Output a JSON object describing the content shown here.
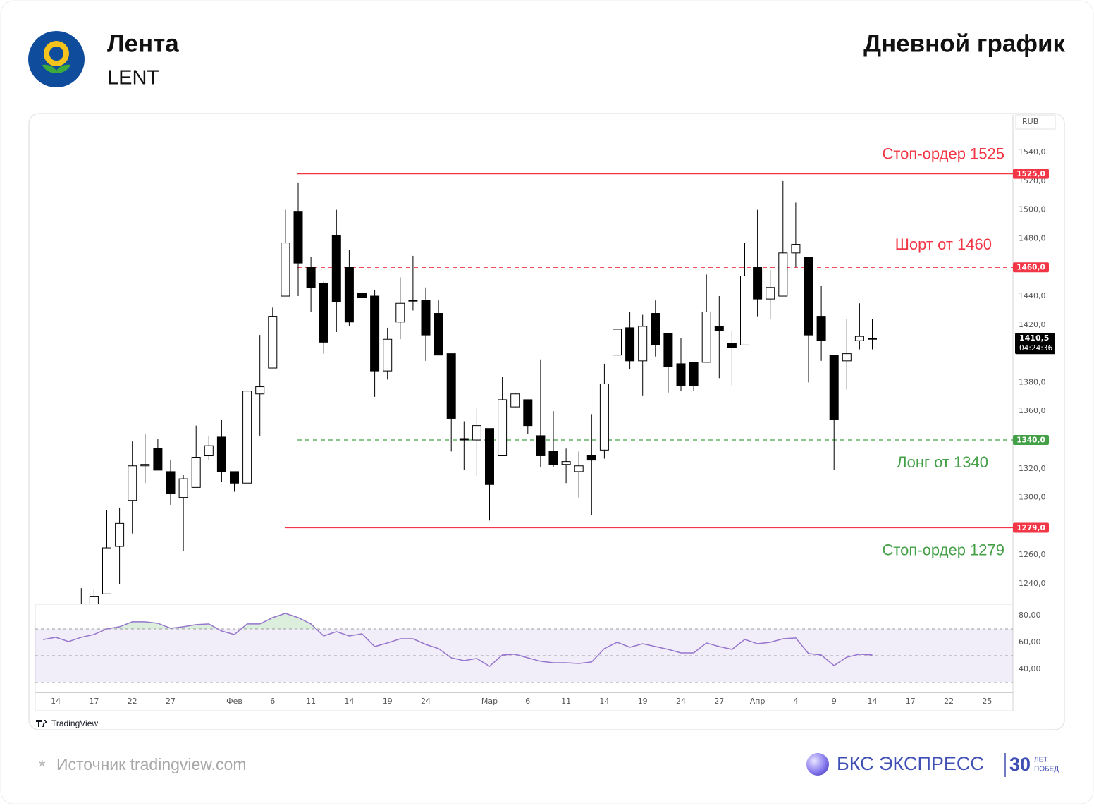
{
  "header": {
    "title": "Лента",
    "ticker": "LENT",
    "chart_label": "Дневной график"
  },
  "chart_data": [
    {
      "type": "candlestick",
      "currency": "RUB",
      "categories": [
        null,
        "14",
        null,
        null,
        "17",
        null,
        null,
        "22",
        null,
        null,
        "27",
        null,
        null,
        null,
        null,
        "Фев",
        null,
        null,
        "6",
        null,
        null,
        "11",
        null,
        null,
        "14",
        null,
        null,
        "19",
        null,
        null,
        "24",
        null,
        null,
        null,
        null,
        "Мар",
        null,
        null,
        "6",
        null,
        null,
        "11",
        null,
        null,
        "14",
        null,
        null,
        "19",
        null,
        null,
        "24",
        null,
        null,
        "27",
        null,
        null,
        "Апр",
        null,
        null,
        "4",
        null,
        null,
        "9",
        null,
        null,
        "14",
        null,
        null,
        "17",
        null,
        null,
        "22",
        null,
        null,
        "25"
      ],
      "open": [
        null,
        null,
        null,
        1220,
        1222,
        1233,
        1266,
        1298,
        1322,
        1334,
        1318,
        1300,
        1307,
        1329,
        1342,
        1318,
        1310,
        1372,
        1390,
        1440,
        1499,
        1460,
        1449,
        1482,
        1460,
        1442,
        1440,
        1388,
        1422,
        1437,
        1437,
        1428,
        1400,
        1341,
        1340,
        1348,
        1329,
        1363,
        1368,
        1343,
        1332,
        1323,
        1318,
        1329,
        1333,
        1399,
        1418,
        1395,
        1428,
        1414,
        1393,
        1394,
        1394,
        1419,
        1407,
        1406,
        1460,
        1438,
        1440,
        1470,
        1467,
        1426,
        1399,
        1395,
        1409,
        1410.5,
        null,
        null,
        null,
        null,
        null,
        null,
        null,
        null,
        null
      ],
      "high": [
        null,
        null,
        null,
        1237,
        1236,
        1291,
        1293,
        1339,
        1344,
        1341,
        1326,
        1316,
        1350,
        1343,
        1354,
        1318,
        1374,
        1413,
        1432,
        1500,
        1519,
        1467,
        1450,
        1500,
        1472,
        1451,
        1444,
        1418,
        1453,
        1468,
        1446,
        1437,
        1400,
        1353,
        1362,
        1348,
        1384,
        1373,
        1368,
        1396,
        1360,
        1334,
        1332,
        1358,
        1393,
        1427,
        1429,
        1427,
        1437,
        1414,
        1411,
        1394,
        1455,
        1440,
        1416,
        1477,
        1500,
        1458,
        1520,
        1505,
        1467,
        1447,
        1399,
        1424,
        1435,
        1424,
        null,
        null,
        null,
        null,
        null,
        null,
        null,
        null,
        null
      ],
      "low": [
        null,
        null,
        null,
        1208,
        1215,
        1233,
        1240,
        1275,
        1310,
        1319,
        1295,
        1263,
        1307,
        1326,
        1311,
        1304,
        1310,
        1343,
        1390,
        1440,
        1440,
        1429,
        1400,
        1415,
        1419,
        1432,
        1370,
        1382,
        1410,
        1430,
        1395,
        1399,
        1332,
        1319,
        1315,
        1284,
        1329,
        1362,
        1344,
        1321,
        1321,
        1310,
        1300,
        1288,
        1327,
        1388,
        1389,
        1371,
        1398,
        1373,
        1374,
        1374,
        1394,
        1383,
        1378,
        1406,
        1426,
        1424,
        1440,
        1460,
        1380,
        1395,
        1319,
        1375,
        1403,
        1403,
        null,
        null,
        null,
        null,
        null,
        null,
        null,
        null,
        null
      ],
      "close": [
        null,
        null,
        null,
        1215,
        1231,
        1265,
        1282,
        1322,
        1323,
        1319,
        1303,
        1313,
        1328,
        1336,
        1318,
        1310,
        1374,
        1377,
        1426,
        1477,
        1463,
        1446,
        1408,
        1436,
        1422,
        1439,
        1388,
        1410,
        1435,
        1437,
        1413,
        1399,
        1355,
        1340,
        1350,
        1309,
        1368,
        1372,
        1350,
        1329,
        1323,
        1325,
        1322,
        1326,
        1379,
        1417,
        1395,
        1419,
        1406,
        1391,
        1378,
        1378,
        1429,
        1416,
        1404,
        1454,
        1438,
        1446,
        1470,
        1476,
        1413,
        1409,
        1354,
        1400,
        1412,
        1410.5,
        null,
        null,
        null,
        null,
        null,
        null,
        null,
        null,
        null
      ],
      "up_color": "#ffffff",
      "down_color": "#000000",
      "ylim": [
        1225.8,
        1566
      ],
      "yticks": [
        {
          "value": 1540,
          "label": "1540,0"
        },
        {
          "value": 1520,
          "label": "1520,0"
        },
        {
          "value": 1500,
          "label": "1500,0"
        },
        {
          "value": 1480,
          "label": "1480,0"
        },
        {
          "value": 1440,
          "label": "1440,0"
        },
        {
          "value": 1420,
          "label": "1420,0"
        },
        {
          "value": 1380,
          "label": "1380,0"
        },
        {
          "value": 1360,
          "label": "1360,0"
        },
        {
          "value": 1320,
          "label": "1320,0"
        },
        {
          "value": 1300,
          "label": "1300,0"
        },
        {
          "value": 1260,
          "label": "1260,0"
        },
        {
          "value": 1240,
          "label": "1240,0"
        }
      ],
      "levels": [
        {
          "value": 1525,
          "label": "1525,0",
          "text": "Стоп-ордер 1525",
          "color": "#f23645",
          "text_color": "#f23645",
          "style": "solid"
        },
        {
          "value": 1460,
          "label": "1460,0",
          "text": "Шорт от 1460",
          "color": "#f23645",
          "text_color": "#f23645",
          "style": "dashed"
        },
        {
          "value": 1340,
          "label": "1340,0",
          "text": "Лонг от 1340",
          "color": "#43a047",
          "text_color": "#43a047",
          "style": "dashed"
        },
        {
          "value": 1279,
          "label": "1279,0",
          "text": "Стоп-ордер 1279",
          "color": "#f23645",
          "text_color": "#43a047",
          "style": "solid"
        }
      ],
      "last_price": {
        "value": 1410.5,
        "label": "1410,5",
        "countdown": "04:24:36"
      }
    },
    {
      "type": "line",
      "color": "#9575cd",
      "band_color": "#7e57c2",
      "overbought_color": "#4caf50",
      "values": [
        62,
        63.7,
        60.5,
        63.7,
        65.8,
        70,
        71.6,
        75.3,
        75.3,
        74.2,
        70.5,
        71.6,
        73.2,
        73.7,
        68.4,
        65.8,
        73.7,
        73.7,
        78.4,
        81.6,
        78.4,
        73.7,
        64.7,
        67.9,
        64.7,
        66.3,
        56.8,
        59.5,
        62.6,
        62.6,
        58.4,
        55.3,
        48.4,
        46.3,
        47.9,
        42.1,
        50.5,
        51.1,
        48.4,
        45.8,
        44.7,
        44.7,
        44.2,
        45.3,
        55.3,
        60,
        56.3,
        58.9,
        56.8,
        54.7,
        52.1,
        52.1,
        59.5,
        56.8,
        54.7,
        62.1,
        58.9,
        60,
        62.6,
        63.2,
        51.6,
        50.5,
        42.6,
        48.9,
        51.1,
        50.5,
        null,
        null,
        null,
        null,
        null,
        null,
        null,
        null,
        null
      ],
      "ylim": [
        22.6,
        88.4
      ],
      "yticks": [
        {
          "value": 80,
          "label": "80,00"
        },
        {
          "value": 60,
          "label": "60,00"
        },
        {
          "value": 40,
          "label": "40,00"
        }
      ],
      "levels": [
        70,
        50,
        30
      ]
    }
  ],
  "footer": {
    "asterisk": "*",
    "source": "Источник tradingview.com",
    "tv_logo": "TradingView",
    "brand": "БКС ЭКСПРЕСС",
    "years": "30",
    "years_top": "ЛЕТ",
    "years_bottom": "ПОБЕД"
  }
}
